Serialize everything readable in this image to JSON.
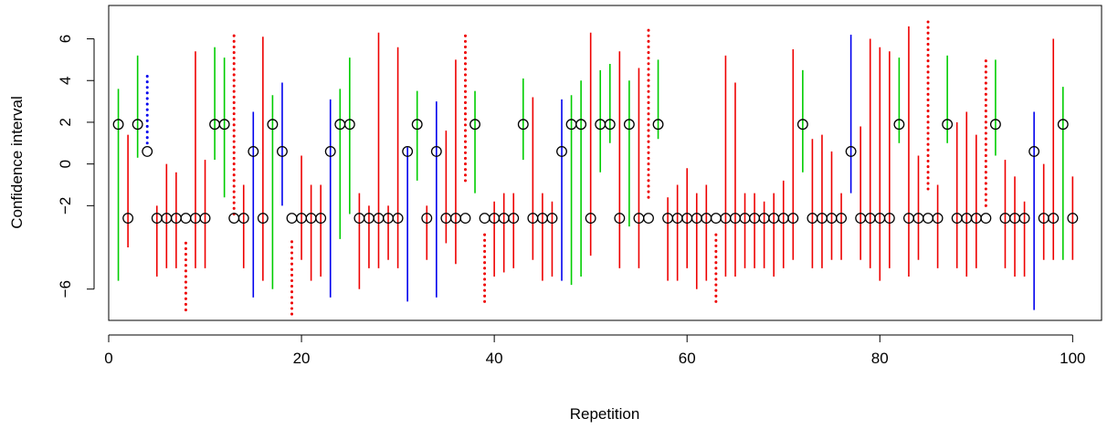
{
  "chart_data": {
    "type": "scatter",
    "title": "",
    "xlabel": "Repetition",
    "ylabel": "Confidence interval",
    "xlim": [
      0,
      103
    ],
    "ylim": [
      -7.5,
      7.6
    ],
    "x_ticks": [
      0,
      20,
      40,
      60,
      80,
      100
    ],
    "y_ticks": [
      -6,
      -2,
      0,
      2,
      4,
      6
    ],
    "grid": false,
    "legend": "none",
    "colors": {
      "green": "#00cd00",
      "red": "#ee0000",
      "blue": "#0000ee",
      "point": "#000000"
    },
    "estimates": [
      {
        "x": 1,
        "y": 1.9,
        "lo": -5.6,
        "hi": 3.6,
        "color": "green"
      },
      {
        "x": 2,
        "y": -2.6,
        "lo": -4.0,
        "hi": 1.4,
        "color": "red"
      },
      {
        "x": 3,
        "y": 1.9,
        "lo": 0.3,
        "hi": 5.2,
        "color": "green"
      },
      {
        "x": 4,
        "y": 0.6,
        "lo": 1.0,
        "hi": 4.4,
        "color": "blue",
        "style": "dotted"
      },
      {
        "x": 5,
        "y": -2.6,
        "lo": -5.4,
        "hi": -2.0,
        "color": "red"
      },
      {
        "x": 6,
        "y": -2.6,
        "lo": -5.0,
        "hi": 0.0,
        "color": "red"
      },
      {
        "x": 7,
        "y": -2.6,
        "lo": -5.0,
        "hi": -0.4,
        "color": "red"
      },
      {
        "x": 8,
        "y": -2.6,
        "lo": -7.0,
        "hi": -3.6,
        "color": "red",
        "style": "dotted"
      },
      {
        "x": 9,
        "y": -2.6,
        "lo": -5.0,
        "hi": 5.4,
        "color": "red"
      },
      {
        "x": 10,
        "y": -2.6,
        "lo": -5.0,
        "hi": 0.2,
        "color": "red"
      },
      {
        "x": 11,
        "y": 1.9,
        "lo": 0.2,
        "hi": 5.6,
        "color": "green"
      },
      {
        "x": 12,
        "y": 1.9,
        "lo": -1.6,
        "hi": 5.1,
        "color": "green"
      },
      {
        "x": 13,
        "y": -2.6,
        "lo": -2.4,
        "hi": 6.4,
        "color": "red",
        "style": "dotted"
      },
      {
        "x": 14,
        "y": -2.6,
        "lo": -5.0,
        "hi": -1.0,
        "color": "red"
      },
      {
        "x": 15,
        "y": 0.6,
        "lo": -6.4,
        "hi": 2.5,
        "color": "blue"
      },
      {
        "x": 16,
        "y": -2.6,
        "lo": -5.6,
        "hi": 6.1,
        "color": "red"
      },
      {
        "x": 17,
        "y": 1.9,
        "lo": -6.0,
        "hi": 3.3,
        "color": "green"
      },
      {
        "x": 18,
        "y": 0.6,
        "lo": -2.0,
        "hi": 3.9,
        "color": "blue"
      },
      {
        "x": 19,
        "y": -2.6,
        "lo": -7.2,
        "hi": -3.6,
        "color": "red",
        "style": "dotted"
      },
      {
        "x": 20,
        "y": -2.6,
        "lo": -4.6,
        "hi": 0.4,
        "color": "red"
      },
      {
        "x": 21,
        "y": -2.6,
        "lo": -5.6,
        "hi": -1.0,
        "color": "red"
      },
      {
        "x": 22,
        "y": -2.6,
        "lo": -5.4,
        "hi": -1.0,
        "color": "red"
      },
      {
        "x": 23,
        "y": 0.6,
        "lo": -6.4,
        "hi": 3.1,
        "color": "blue"
      },
      {
        "x": 24,
        "y": 1.9,
        "lo": -3.6,
        "hi": 3.6,
        "color": "green"
      },
      {
        "x": 25,
        "y": 1.9,
        "lo": -2.4,
        "hi": 5.1,
        "color": "green"
      },
      {
        "x": 26,
        "y": -2.6,
        "lo": -6.0,
        "hi": -1.4,
        "color": "red"
      },
      {
        "x": 27,
        "y": -2.6,
        "lo": -5.0,
        "hi": -2.0,
        "color": "red"
      },
      {
        "x": 28,
        "y": -2.6,
        "lo": -5.0,
        "hi": 6.3,
        "color": "red"
      },
      {
        "x": 29,
        "y": -2.6,
        "lo": -4.6,
        "hi": -2.0,
        "color": "red"
      },
      {
        "x": 30,
        "y": -2.6,
        "lo": -5.0,
        "hi": 5.6,
        "color": "red"
      },
      {
        "x": 31,
        "y": 0.6,
        "lo": -6.6,
        "hi": 0.8,
        "color": "blue"
      },
      {
        "x": 32,
        "y": 1.9,
        "lo": -0.8,
        "hi": 3.5,
        "color": "green"
      },
      {
        "x": 33,
        "y": -2.6,
        "lo": -4.6,
        "hi": -2.0,
        "color": "red"
      },
      {
        "x": 34,
        "y": 0.6,
        "lo": -6.4,
        "hi": 3.0,
        "color": "blue"
      },
      {
        "x": 35,
        "y": -2.6,
        "lo": -3.8,
        "hi": 1.6,
        "color": "red"
      },
      {
        "x": 36,
        "y": -2.6,
        "lo": -4.8,
        "hi": 5.0,
        "color": "red"
      },
      {
        "x": 37,
        "y": -2.6,
        "lo": -0.8,
        "hi": 6.2,
        "color": "red",
        "style": "dotted"
      },
      {
        "x": 38,
        "y": 1.9,
        "lo": -1.4,
        "hi": 3.5,
        "color": "green"
      },
      {
        "x": 39,
        "y": -2.6,
        "lo": -6.6,
        "hi": -3.2,
        "color": "red",
        "style": "dotted"
      },
      {
        "x": 40,
        "y": -2.6,
        "lo": -5.4,
        "hi": -1.8,
        "color": "red"
      },
      {
        "x": 41,
        "y": -2.6,
        "lo": -5.2,
        "hi": -1.4,
        "color": "red"
      },
      {
        "x": 42,
        "y": -2.6,
        "lo": -5.0,
        "hi": -1.4,
        "color": "red"
      },
      {
        "x": 43,
        "y": 1.9,
        "lo": 0.2,
        "hi": 4.1,
        "color": "green"
      },
      {
        "x": 44,
        "y": -2.6,
        "lo": -4.6,
        "hi": 3.2,
        "color": "red"
      },
      {
        "x": 45,
        "y": -2.6,
        "lo": -5.6,
        "hi": -1.4,
        "color": "red"
      },
      {
        "x": 46,
        "y": -2.6,
        "lo": -5.4,
        "hi": -1.8,
        "color": "red"
      },
      {
        "x": 47,
        "y": 0.6,
        "lo": -5.6,
        "hi": 3.1,
        "color": "blue"
      },
      {
        "x": 48,
        "y": 1.9,
        "lo": -5.8,
        "hi": 3.3,
        "color": "green"
      },
      {
        "x": 49,
        "y": 1.9,
        "lo": -5.4,
        "hi": 4.0,
        "color": "green"
      },
      {
        "x": 50,
        "y": -2.6,
        "lo": -4.4,
        "hi": 6.3,
        "color": "red"
      },
      {
        "x": 51,
        "y": 1.9,
        "lo": -0.4,
        "hi": 4.5,
        "color": "green"
      },
      {
        "x": 52,
        "y": 1.9,
        "lo": 1.0,
        "hi": 4.8,
        "color": "green"
      },
      {
        "x": 53,
        "y": -2.6,
        "lo": -5.0,
        "hi": 5.4,
        "color": "red"
      },
      {
        "x": 54,
        "y": 1.9,
        "lo": -3.0,
        "hi": 4.0,
        "color": "green"
      },
      {
        "x": 55,
        "y": -2.6,
        "lo": -5.0,
        "hi": 4.6,
        "color": "red"
      },
      {
        "x": 56,
        "y": -2.6,
        "lo": -1.6,
        "hi": 6.6,
        "color": "red",
        "style": "dotted"
      },
      {
        "x": 57,
        "y": 1.9,
        "lo": 1.2,
        "hi": 5.0,
        "color": "green"
      },
      {
        "x": 58,
        "y": -2.6,
        "lo": -5.6,
        "hi": -1.6,
        "color": "red"
      },
      {
        "x": 59,
        "y": -2.6,
        "lo": -5.6,
        "hi": -1.0,
        "color": "red"
      },
      {
        "x": 60,
        "y": -2.6,
        "lo": -5.0,
        "hi": -0.2,
        "color": "red"
      },
      {
        "x": 61,
        "y": -2.6,
        "lo": -6.0,
        "hi": -1.4,
        "color": "red"
      },
      {
        "x": 62,
        "y": -2.6,
        "lo": -5.6,
        "hi": -1.0,
        "color": "red"
      },
      {
        "x": 63,
        "y": -2.6,
        "lo": -6.6,
        "hi": -3.2,
        "color": "red",
        "style": "dotted"
      },
      {
        "x": 64,
        "y": -2.6,
        "lo": -5.4,
        "hi": 5.2,
        "color": "red"
      },
      {
        "x": 65,
        "y": -2.6,
        "lo": -5.4,
        "hi": 3.9,
        "color": "red"
      },
      {
        "x": 66,
        "y": -2.6,
        "lo": -5.0,
        "hi": -1.4,
        "color": "red"
      },
      {
        "x": 67,
        "y": -2.6,
        "lo": -5.0,
        "hi": -1.4,
        "color": "red"
      },
      {
        "x": 68,
        "y": -2.6,
        "lo": -5.0,
        "hi": -1.8,
        "color": "red"
      },
      {
        "x": 69,
        "y": -2.6,
        "lo": -5.4,
        "hi": -1.4,
        "color": "red"
      },
      {
        "x": 70,
        "y": -2.6,
        "lo": -5.0,
        "hi": -0.8,
        "color": "red"
      },
      {
        "x": 71,
        "y": -2.6,
        "lo": -4.6,
        "hi": 5.5,
        "color": "red"
      },
      {
        "x": 72,
        "y": 1.9,
        "lo": -0.4,
        "hi": 4.5,
        "color": "green"
      },
      {
        "x": 73,
        "y": -2.6,
        "lo": -5.0,
        "hi": 1.2,
        "color": "red"
      },
      {
        "x": 74,
        "y": -2.6,
        "lo": -5.0,
        "hi": 1.4,
        "color": "red"
      },
      {
        "x": 75,
        "y": -2.6,
        "lo": -4.6,
        "hi": 0.6,
        "color": "red"
      },
      {
        "x": 76,
        "y": -2.6,
        "lo": -4.6,
        "hi": -1.4,
        "color": "red"
      },
      {
        "x": 77,
        "y": 0.6,
        "lo": -1.4,
        "hi": 6.2,
        "color": "blue"
      },
      {
        "x": 78,
        "y": -2.6,
        "lo": -4.6,
        "hi": 1.8,
        "color": "red"
      },
      {
        "x": 79,
        "y": -2.6,
        "lo": -5.0,
        "hi": 6.0,
        "color": "red"
      },
      {
        "x": 80,
        "y": -2.6,
        "lo": -5.6,
        "hi": 5.6,
        "color": "red"
      },
      {
        "x": 81,
        "y": -2.6,
        "lo": -5.0,
        "hi": 5.4,
        "color": "red"
      },
      {
        "x": 82,
        "y": 1.9,
        "lo": 1.0,
        "hi": 5.1,
        "color": "green"
      },
      {
        "x": 83,
        "y": -2.6,
        "lo": -5.4,
        "hi": 6.6,
        "color": "red"
      },
      {
        "x": 84,
        "y": -2.6,
        "lo": -4.6,
        "hi": 0.4,
        "color": "red"
      },
      {
        "x": 85,
        "y": -2.6,
        "lo": -1.2,
        "hi": 6.9,
        "color": "red",
        "style": "dotted"
      },
      {
        "x": 86,
        "y": -2.6,
        "lo": -5.0,
        "hi": -1.0,
        "color": "red"
      },
      {
        "x": 87,
        "y": 1.9,
        "lo": 1.0,
        "hi": 5.2,
        "color": "green"
      },
      {
        "x": 88,
        "y": -2.6,
        "lo": -5.0,
        "hi": 2.0,
        "color": "red"
      },
      {
        "x": 89,
        "y": -2.6,
        "lo": -5.4,
        "hi": 2.5,
        "color": "red"
      },
      {
        "x": 90,
        "y": -2.6,
        "lo": -5.0,
        "hi": 1.4,
        "color": "red"
      },
      {
        "x": 91,
        "y": -2.6,
        "lo": -2.0,
        "hi": 5.2,
        "color": "red",
        "style": "dotted"
      },
      {
        "x": 92,
        "y": 1.9,
        "lo": 0.4,
        "hi": 5.0,
        "color": "green"
      },
      {
        "x": 93,
        "y": -2.6,
        "lo": -5.0,
        "hi": 0.2,
        "color": "red"
      },
      {
        "x": 94,
        "y": -2.6,
        "lo": -5.4,
        "hi": -0.6,
        "color": "red"
      },
      {
        "x": 95,
        "y": -2.6,
        "lo": -5.4,
        "hi": -1.8,
        "color": "red"
      },
      {
        "x": 96,
        "y": 0.6,
        "lo": -7.0,
        "hi": 2.5,
        "color": "blue"
      },
      {
        "x": 97,
        "y": -2.6,
        "lo": -4.6,
        "hi": 0.0,
        "color": "red"
      },
      {
        "x": 98,
        "y": -2.6,
        "lo": -4.6,
        "hi": 6.0,
        "color": "red"
      },
      {
        "x": 99,
        "y": 1.9,
        "lo": -4.6,
        "hi": 3.7,
        "color": "green"
      },
      {
        "x": 100,
        "y": -2.6,
        "lo": -4.6,
        "hi": -0.6,
        "color": "red"
      }
    ]
  }
}
